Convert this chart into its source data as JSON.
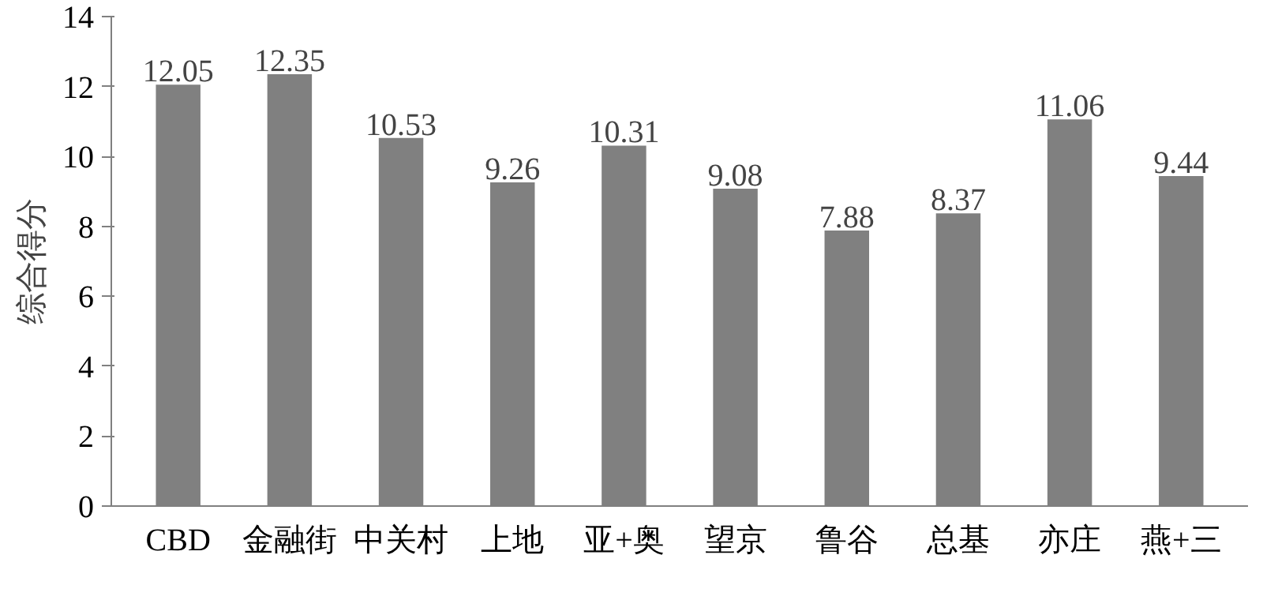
{
  "chart_data": {
    "type": "bar",
    "ylabel": "综合得分",
    "categories": [
      "CBD",
      "金融街",
      "中关村",
      "上地",
      "亚+奥",
      "望京",
      "鲁谷",
      "总基",
      "亦庄",
      "燕+三"
    ],
    "values": [
      12.05,
      12.35,
      10.53,
      9.26,
      10.31,
      9.08,
      7.88,
      8.37,
      11.06,
      9.44
    ],
    "color": "#808080",
    "ylim": [
      0,
      14
    ],
    "yticks": [
      0,
      2,
      4,
      6,
      8,
      10,
      12,
      14
    ],
    "grid": false,
    "data_labels": true
  }
}
